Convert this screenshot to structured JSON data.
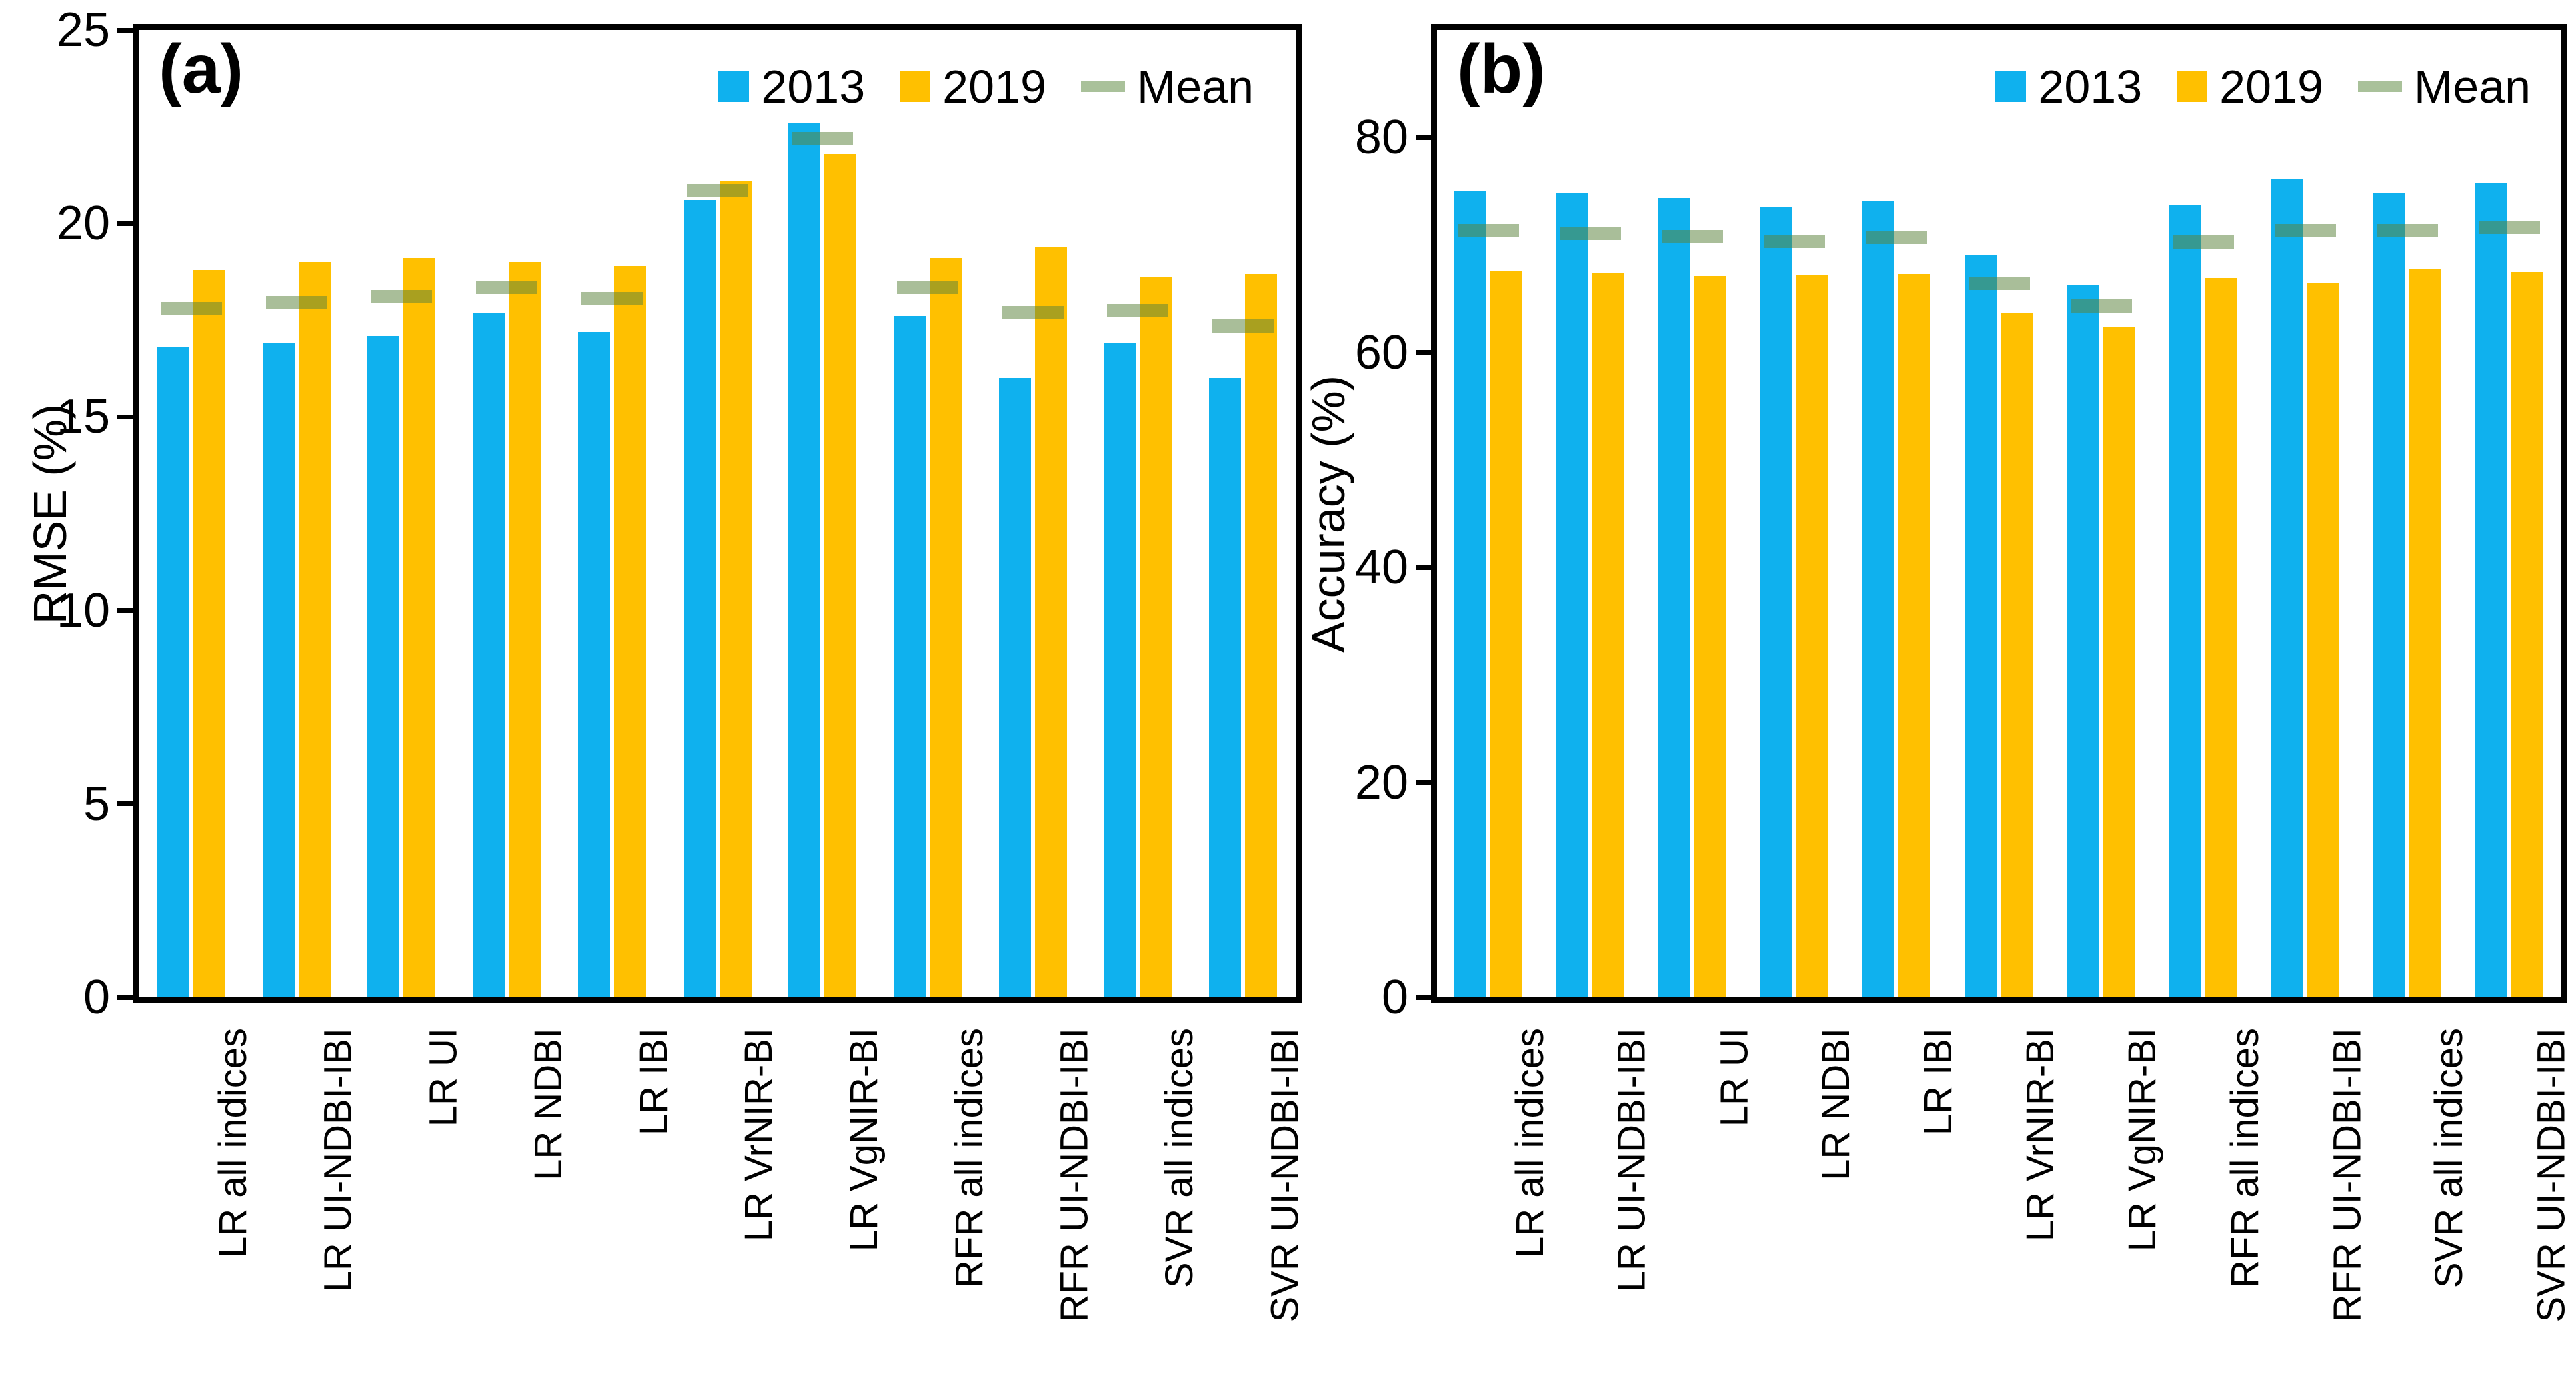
{
  "figure": {
    "background": "#ffffff",
    "legend": {
      "position": "top-right-inside",
      "items": [
        {
          "label": "2013",
          "swatch": "square",
          "color": "#0FB1EE"
        },
        {
          "label": "2019",
          "swatch": "square",
          "color": "#FFC000"
        },
        {
          "label": "Mean",
          "swatch": "dash",
          "color": "#A9C19A"
        }
      ]
    },
    "colors": {
      "bar_2013": "#0FB1EE",
      "bar_2019": "#FFC000",
      "mean_dash": "rgba(90,130,60,0.52)",
      "axis": "#000000"
    }
  },
  "chart_data": [
    {
      "type": "bar",
      "panel_label": "(a)",
      "ylabel": "RMSE (%)",
      "xlabel": "",
      "ylim": [
        0,
        25
      ],
      "yticks": [
        0,
        5,
        10,
        15,
        20,
        25
      ],
      "grid": false,
      "legend_position": "top-right",
      "categories": [
        "LR all indices",
        "LR UI-NDBI-IBI",
        "LR UI",
        "LR NDBI",
        "LR IBI",
        "LR VrNIR-BI",
        "LR VgNIR-BI",
        "RFR all indices",
        "RFR UI-NDBI-IBI",
        "SVR all indices",
        "SVR UI-NDBI-IBI"
      ],
      "series": [
        {
          "name": "2013",
          "style": "bar",
          "values": [
            16.8,
            16.9,
            17.1,
            17.7,
            17.2,
            20.6,
            22.6,
            17.6,
            16.0,
            16.9,
            16.0
          ]
        },
        {
          "name": "2019",
          "style": "bar",
          "values": [
            18.8,
            19.0,
            19.1,
            19.0,
            18.9,
            21.1,
            21.8,
            19.1,
            19.4,
            18.6,
            18.7
          ]
        },
        {
          "name": "Mean",
          "style": "dash",
          "values": [
            17.8,
            17.95,
            18.1,
            18.35,
            18.05,
            20.85,
            22.2,
            18.35,
            17.7,
            17.75,
            17.35
          ]
        }
      ]
    },
    {
      "type": "bar",
      "panel_label": "(b)",
      "ylabel": "Accuracy (%)",
      "xlabel": "",
      "ylim": [
        0,
        90
      ],
      "yticks": [
        0,
        20,
        40,
        60,
        80
      ],
      "grid": false,
      "legend_position": "top-right",
      "categories": [
        "LR all indices",
        "LR UI-NDBI-IBI",
        "LR UI",
        "LR NDBI",
        "LR IBI",
        "LR VrNIR-BI",
        "LR VgNIR-BI",
        "RFR all indices",
        "RFR UI-NDBI-IBI",
        "SVR all indices",
        "SVR UI-NDBI-IBI"
      ],
      "series": [
        {
          "name": "2013",
          "style": "bar",
          "values": [
            75.0,
            74.8,
            74.4,
            73.5,
            74.1,
            69.1,
            66.3,
            73.7,
            76.1,
            74.8,
            75.8
          ]
        },
        {
          "name": "2019",
          "style": "bar",
          "values": [
            67.6,
            67.4,
            67.1,
            67.2,
            67.3,
            63.7,
            62.4,
            66.9,
            66.5,
            67.8,
            67.5
          ]
        },
        {
          "name": "Mean",
          "style": "dash",
          "values": [
            71.3,
            71.1,
            70.75,
            70.35,
            70.7,
            66.4,
            64.35,
            70.3,
            71.3,
            71.3,
            71.65
          ]
        }
      ]
    }
  ]
}
